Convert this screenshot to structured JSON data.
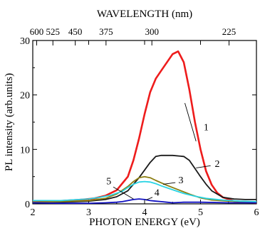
{
  "chart_data": {
    "type": "line",
    "xlabel": "PHOTON ENERGY (eV)",
    "ylabel": "PL intensity (arb.units)",
    "top_axis_label": "WAVELENGTH (nm)",
    "xlim": [
      2,
      6
    ],
    "ylim": [
      0,
      30
    ],
    "x_ticks": [
      2,
      3,
      4,
      5,
      6
    ],
    "y_ticks": [
      0,
      10,
      20,
      30
    ],
    "top_ticks": [
      {
        "label": "600",
        "energy": 2.07
      },
      {
        "label": "525",
        "energy": 2.36
      },
      {
        "label": "450",
        "energy": 2.76
      },
      {
        "label": "375",
        "energy": 3.31
      },
      {
        "label": "300",
        "energy": 4.13
      },
      {
        "label": "225",
        "energy": 5.51
      }
    ],
    "grid": false,
    "series": [
      {
        "name": "1",
        "color": "#ee1c1c",
        "x": [
          2.0,
          2.3,
          2.6,
          2.9,
          3.1,
          3.3,
          3.5,
          3.7,
          3.8,
          3.9,
          4.0,
          4.1,
          4.2,
          4.3,
          4.4,
          4.5,
          4.6,
          4.7,
          4.8,
          4.9,
          5.0,
          5.1,
          5.2,
          5.3,
          5.4,
          5.6,
          5.8,
          6.0
        ],
        "y": [
          0.3,
          0.4,
          0.6,
          0.8,
          1.0,
          1.5,
          2.5,
          5.0,
          8.0,
          12.0,
          16.5,
          20.5,
          23.0,
          24.5,
          26.0,
          27.5,
          28.0,
          26.0,
          21.0,
          15.0,
          10.0,
          6.0,
          3.5,
          2.0,
          1.2,
          0.5,
          0.3,
          0.2
        ],
        "label_pos": [
          5.1,
          13.5
        ]
      },
      {
        "name": "2",
        "color": "#1a1a1a",
        "x": [
          2.0,
          2.5,
          3.0,
          3.3,
          3.5,
          3.7,
          3.9,
          4.1,
          4.2,
          4.3,
          4.5,
          4.7,
          4.8,
          4.9,
          5.0,
          5.1,
          5.2,
          5.4,
          5.6,
          5.8,
          6.0
        ],
        "y": [
          0.3,
          0.3,
          0.5,
          0.8,
          1.3,
          2.4,
          4.8,
          7.6,
          8.7,
          8.9,
          8.9,
          8.7,
          8.0,
          6.5,
          5.0,
          3.6,
          2.4,
          1.2,
          0.9,
          0.8,
          0.8
        ],
        "label_pos": [
          5.3,
          6.8
        ]
      },
      {
        "name": "3",
        "color": "#8b7d10",
        "x": [
          2.0,
          2.5,
          3.0,
          3.3,
          3.5,
          3.7,
          3.8,
          3.9,
          4.0,
          4.1,
          4.2,
          4.4,
          4.6,
          4.8,
          5.0,
          5.2,
          5.5,
          5.8,
          6.0
        ],
        "y": [
          0.3,
          0.4,
          0.6,
          1.0,
          1.8,
          3.2,
          4.1,
          4.8,
          5.0,
          4.8,
          4.3,
          3.4,
          2.6,
          1.8,
          1.1,
          0.7,
          0.5,
          0.4,
          0.4
        ],
        "label_pos": [
          4.65,
          3.8
        ]
      },
      {
        "name": "4",
        "color": "#1010c0",
        "x": [
          2.0,
          2.5,
          3.0,
          3.3,
          3.5,
          3.6,
          3.7,
          3.8,
          3.9,
          4.0,
          4.1,
          4.2,
          4.3,
          4.4,
          4.5,
          4.7,
          5.0,
          5.5,
          6.0
        ],
        "y": [
          0.2,
          0.1,
          0.1,
          0.2,
          0.3,
          0.4,
          0.6,
          0.8,
          0.9,
          0.8,
          0.6,
          0.5,
          0.4,
          0.3,
          0.2,
          0.3,
          0.3,
          0.2,
          0.2
        ],
        "label_pos": [
          4.22,
          1.5
        ]
      },
      {
        "name": "5",
        "color": "#29d4e4",
        "x": [
          2.0,
          2.5,
          3.0,
          3.2,
          3.4,
          3.6,
          3.7,
          3.8,
          3.9,
          4.0,
          4.1,
          4.2,
          4.3,
          4.5,
          4.7,
          4.9,
          5.1,
          5.4,
          5.7,
          6.0
        ],
        "y": [
          0.6,
          0.6,
          0.9,
          1.2,
          1.6,
          2.3,
          3.0,
          3.6,
          4.0,
          4.1,
          4.0,
          3.7,
          3.3,
          2.6,
          1.9,
          1.4,
          1.0,
          0.7,
          0.5,
          0.4
        ],
        "label_pos": [
          3.36,
          3.6
        ]
      }
    ]
  }
}
